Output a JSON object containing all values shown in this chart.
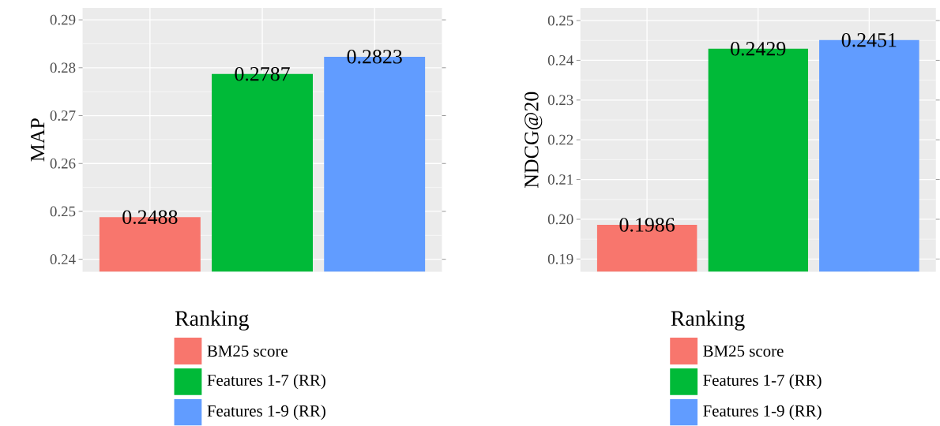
{
  "chart_data": [
    {
      "type": "bar",
      "ylabel": "MAP",
      "legend_title": "Ranking",
      "categories": [
        null,
        null,
        null
      ],
      "series": [
        {
          "name": "BM25 score",
          "color": "#F8766D",
          "values": [
            0.2488,
            null,
            null
          ]
        },
        {
          "name": "Features 1-7 (RR)",
          "color": "#00BA38",
          "values": [
            null,
            0.2787,
            null
          ]
        },
        {
          "name": "Features 1-9 (RR)",
          "color": "#619CFF",
          "values": [
            null,
            null,
            0.2823
          ]
        }
      ],
      "ylim": [
        0.2374,
        0.2925
      ],
      "yticks": [
        0.24,
        0.25,
        0.26,
        0.27,
        0.28,
        0.29
      ],
      "data_labels": true,
      "grid": true,
      "legend": "bottom",
      "tick_labels": "y"
    },
    {
      "type": "bar",
      "ylabel": "NDCG@20",
      "legend_title": "Ranking",
      "categories": [
        null,
        null,
        null
      ],
      "series": [
        {
          "name": "BM25 score",
          "color": "#F8766D",
          "values": [
            0.1986,
            null,
            null
          ]
        },
        {
          "name": "Features 1-7 (RR)",
          "color": "#00BA38",
          "values": [
            null,
            0.2429,
            null
          ]
        },
        {
          "name": "Features 1-9 (RR)",
          "color": "#619CFF",
          "values": [
            null,
            null,
            0.2451
          ]
        }
      ],
      "ylim": [
        0.1868,
        0.2532
      ],
      "yticks": [
        0.19,
        {
          "value": 0.2,
          "label": "0.20"
        },
        0.21,
        0.22,
        0.23,
        0.24,
        0.25
      ],
      "data_labels": true,
      "grid": true,
      "legend": "bottom",
      "tick_labels": "y"
    }
  ]
}
